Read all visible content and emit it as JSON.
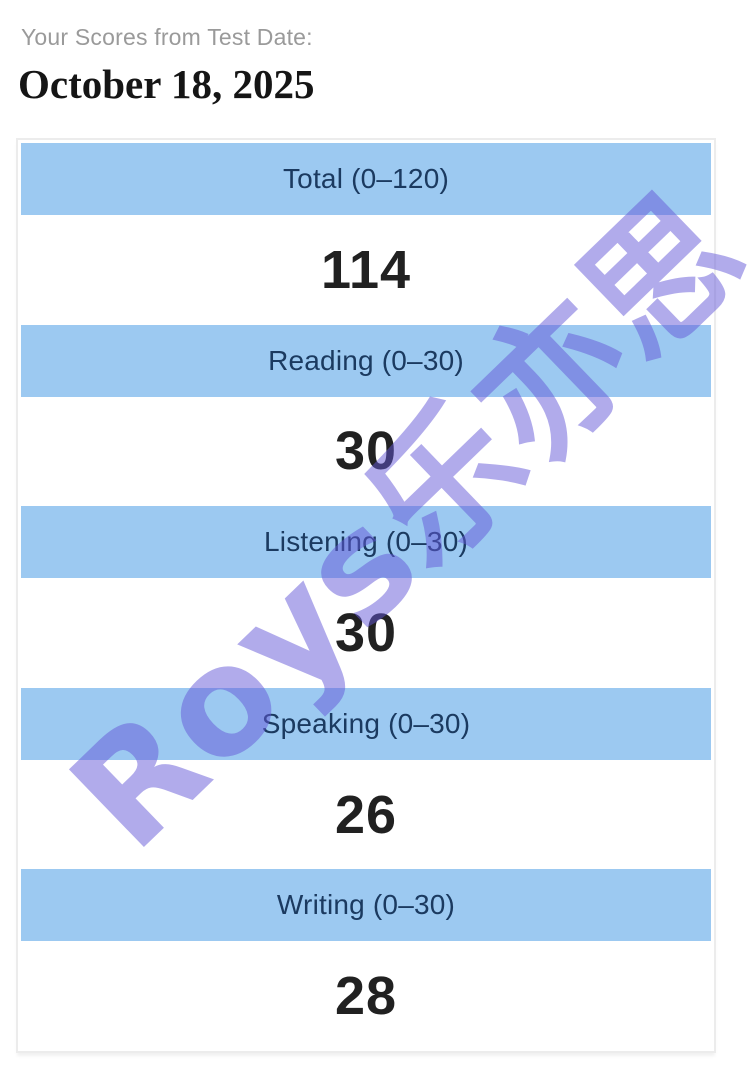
{
  "page": {
    "subtitle": "Your Scores from Test Date:",
    "test_date": "October 18, 2025"
  },
  "scores": {
    "rows": [
      {
        "label": "Total (0–120)",
        "value": "114"
      },
      {
        "label": "Reading (0–30)",
        "value": "30"
      },
      {
        "label": "Listening (0–30)",
        "value": "30"
      },
      {
        "label": "Speaking (0–30)",
        "value": "26"
      },
      {
        "label": "Writing (0–30)",
        "value": "28"
      }
    ]
  },
  "watermark": {
    "text": "Roys乐亦思"
  },
  "colors": {
    "header_band": "#9cc9f1",
    "header_text": "#1b3a60",
    "score_text": "#212121",
    "subtitle_text": "#9a9a9a",
    "watermark": "rgba(100,88,215,0.5)",
    "table_border": "#ececec"
  }
}
